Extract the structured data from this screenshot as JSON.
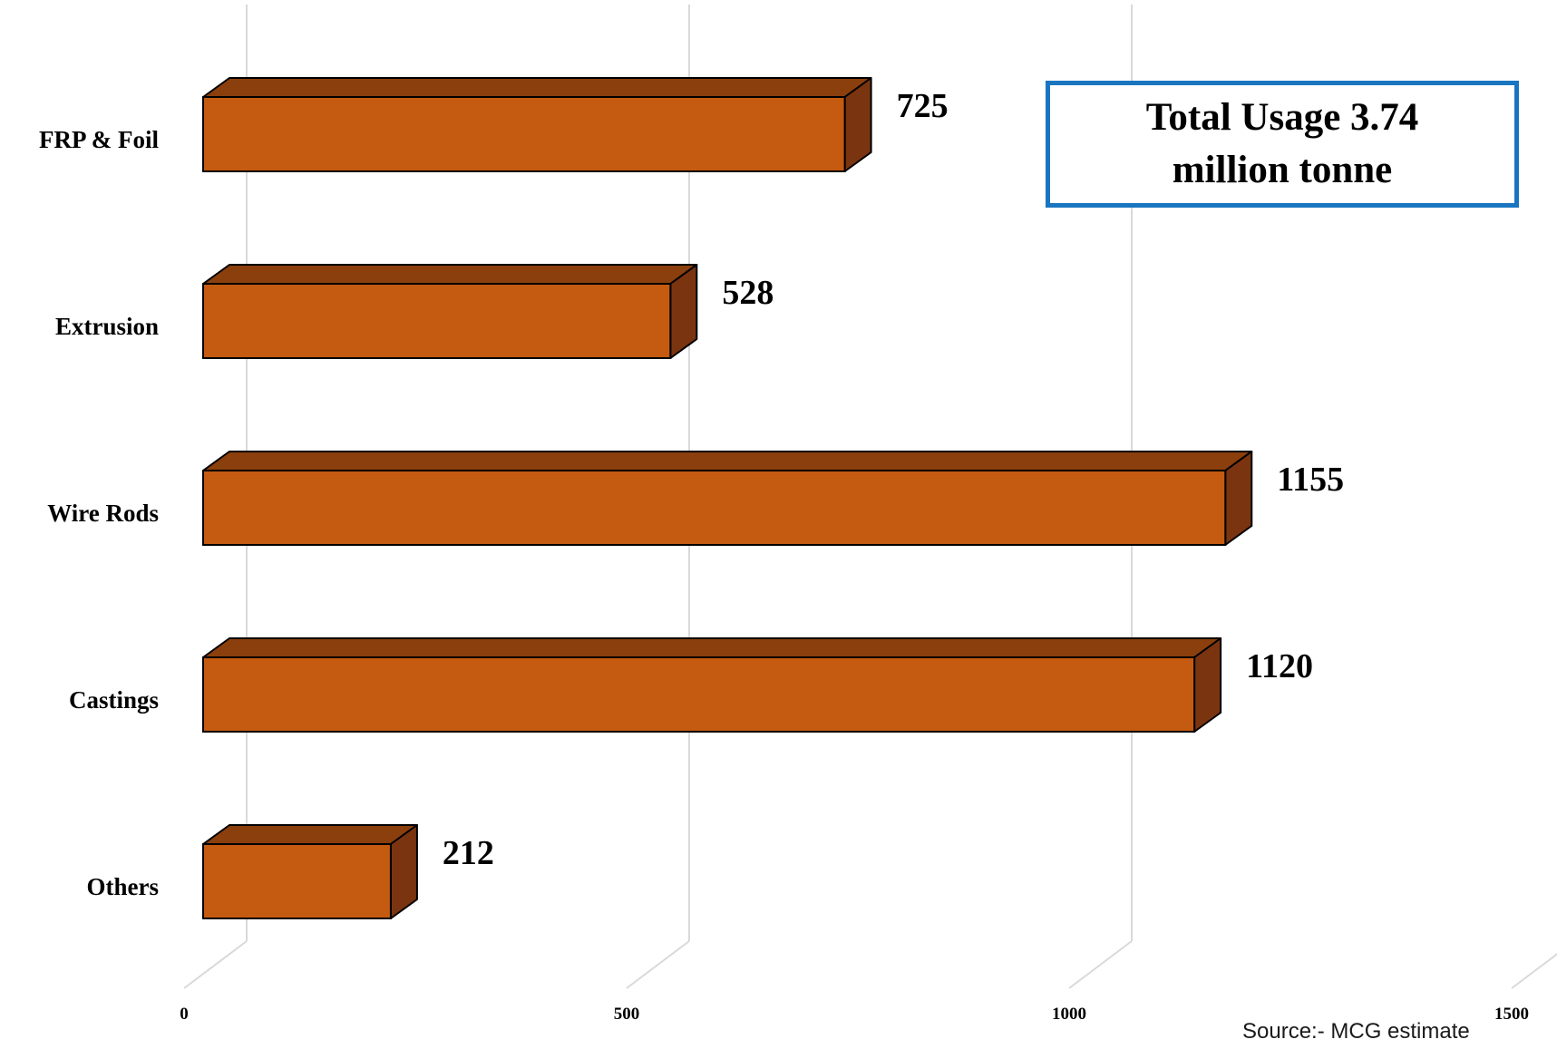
{
  "chart_data": {
    "type": "bar",
    "orientation": "horizontal",
    "style": "3d",
    "categories": [
      "FRP & Foil",
      "Extrusion",
      "Wire Rods",
      "Castings",
      "Others"
    ],
    "values": [
      725,
      528,
      1155,
      1120,
      212
    ],
    "value_labels": [
      "725",
      "528",
      "1155",
      "1120",
      "212"
    ],
    "x_ticks": [
      "0",
      "500",
      "1000",
      "1500"
    ],
    "xlim": [
      0,
      1500
    ],
    "grid": true,
    "colors": {
      "bar_front": "#c55a11",
      "bar_top": "#8b3f0c",
      "bar_side": "#7a3510",
      "grid": "#d9d9d9",
      "callout_border": "#1a75c0"
    },
    "annotation": "Total Usage 3.74 million tonne",
    "source": "Source:- MCG estimate"
  }
}
